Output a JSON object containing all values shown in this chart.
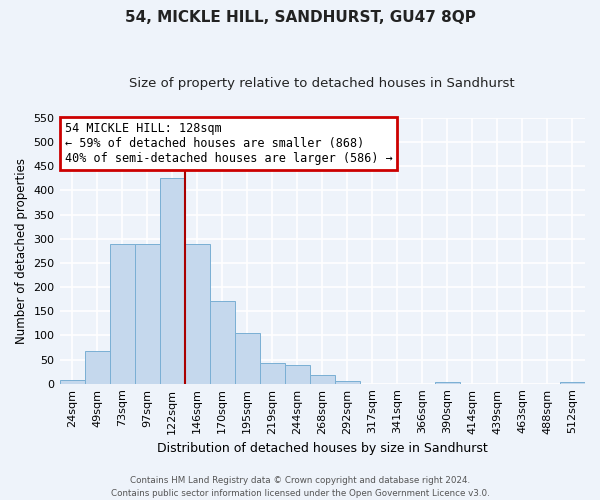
{
  "title": "54, MICKLE HILL, SANDHURST, GU47 8QP",
  "subtitle": "Size of property relative to detached houses in Sandhurst",
  "xlabel": "Distribution of detached houses by size in Sandhurst",
  "ylabel": "Number of detached properties",
  "bar_labels": [
    "24sqm",
    "49sqm",
    "73sqm",
    "97sqm",
    "122sqm",
    "146sqm",
    "170sqm",
    "195sqm",
    "219sqm",
    "244sqm",
    "268sqm",
    "292sqm",
    "317sqm",
    "341sqm",
    "366sqm",
    "390sqm",
    "414sqm",
    "439sqm",
    "463sqm",
    "488sqm",
    "512sqm"
  ],
  "bar_values": [
    8,
    68,
    290,
    290,
    425,
    290,
    172,
    105,
    43,
    38,
    18,
    5,
    0,
    0,
    0,
    3,
    0,
    0,
    0,
    0,
    3
  ],
  "bar_color": "#c5d8ed",
  "bar_edge_color": "#7aafd4",
  "vline_x": 4.5,
  "vline_color": "#aa0000",
  "ylim": [
    0,
    550
  ],
  "yticks": [
    0,
    50,
    100,
    150,
    200,
    250,
    300,
    350,
    400,
    450,
    500,
    550
  ],
  "annotation_title": "54 MICKLE HILL: 128sqm",
  "annotation_line1": "← 59% of detached houses are smaller (868)",
  "annotation_line2": "40% of semi-detached houses are larger (586) →",
  "annotation_box_color": "#ffffff",
  "annotation_box_edge_color": "#cc0000",
  "footer_line1": "Contains HM Land Registry data © Crown copyright and database right 2024.",
  "footer_line2": "Contains public sector information licensed under the Open Government Licence v3.0.",
  "bg_color": "#eef3fa",
  "plot_bg_color": "#eef3fa",
  "grid_color": "#ffffff",
  "title_fontsize": 11,
  "subtitle_fontsize": 9.5
}
